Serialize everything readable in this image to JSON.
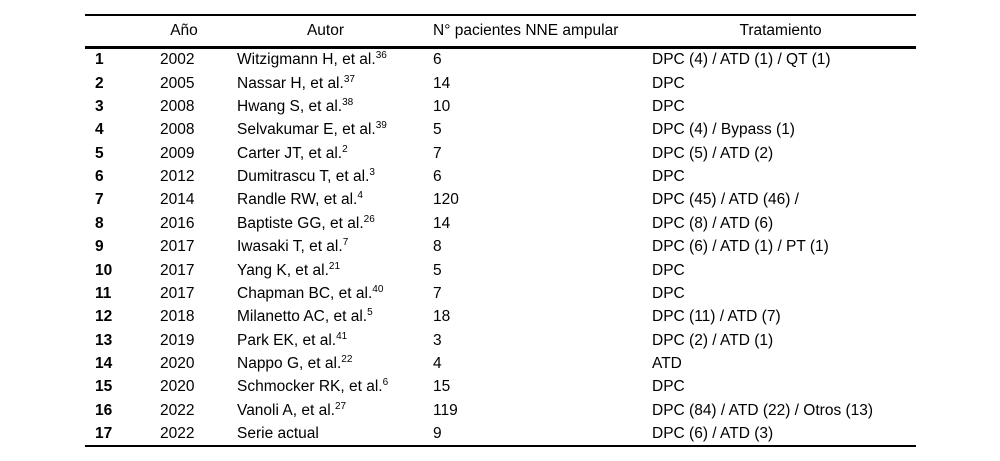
{
  "page": {
    "background_color": "#ffffff",
    "text_color": "#000000"
  },
  "table": {
    "columns": [
      {
        "key": "num",
        "label": ""
      },
      {
        "key": "ano",
        "label": "Año"
      },
      {
        "key": "autor",
        "label": "Autor"
      },
      {
        "key": "pacientes",
        "label": "N° pacientes NNE ampular"
      },
      {
        "key": "tratamiento",
        "label": "Tratamiento"
      }
    ],
    "rows": [
      {
        "num": "1",
        "ano": "2002",
        "autor": "Witzigmann H, et al.",
        "ref": "36",
        "pacientes": "6",
        "tratamiento": "DPC (4) / ATD (1) / QT (1)"
      },
      {
        "num": "2",
        "ano": "2005",
        "autor": "Nassar H, et al.",
        "ref": "37",
        "pacientes": "14",
        "tratamiento": "DPC"
      },
      {
        "num": "3",
        "ano": "2008",
        "autor": "Hwang S, et al.",
        "ref": "38",
        "pacientes": "10",
        "tratamiento": "DPC"
      },
      {
        "num": "4",
        "ano": "2008",
        "autor": "Selvakumar E, et al.",
        "ref": "39",
        "pacientes": "5",
        "tratamiento": "DPC (4) / Bypass (1)"
      },
      {
        "num": "5",
        "ano": "2009",
        "autor": "Carter JT, et al.",
        "ref": "2",
        "pacientes": "7",
        "tratamiento": "DPC (5) / ATD (2)"
      },
      {
        "num": "6",
        "ano": "2012",
        "autor": "Dumitrascu T, et al.",
        "ref": "3",
        "pacientes": "6",
        "tratamiento": "DPC"
      },
      {
        "num": "7",
        "ano": "2014",
        "autor": "Randle RW, et al.",
        "ref": "4",
        "pacientes": "120",
        "tratamiento": "DPC (45) / ATD (46) /"
      },
      {
        "num": "8",
        "ano": "2016",
        "autor": "Baptiste GG, et al.",
        "ref": "26",
        "pacientes": "14",
        "tratamiento": "DPC (8) / ATD (6)"
      },
      {
        "num": "9",
        "ano": "2017",
        "autor": "Iwasaki T, et al.",
        "ref": "7",
        "pacientes": "8",
        "tratamiento": "DPC (6) / ATD (1) / PT (1)"
      },
      {
        "num": "10",
        "ano": "2017",
        "autor": "Yang K, et al.",
        "ref": "21",
        "pacientes": "5",
        "tratamiento": "DPC"
      },
      {
        "num": "11",
        "ano": "2017",
        "autor": "Chapman BC, et al.",
        "ref": "40",
        "pacientes": "7",
        "tratamiento": "DPC"
      },
      {
        "num": "12",
        "ano": "2018",
        "autor": "Milanetto AC, et al.",
        "ref": "5",
        "pacientes": "18",
        "tratamiento": "DPC (11) / ATD (7)"
      },
      {
        "num": "13",
        "ano": "2019",
        "autor": "Park EK, et al.",
        "ref": "41",
        "pacientes": "3",
        "tratamiento": "DPC (2) / ATD (1)"
      },
      {
        "num": "14",
        "ano": "2020",
        "autor": "Nappo G, et al.",
        "ref": "22",
        "pacientes": "4",
        "tratamiento": "ATD"
      },
      {
        "num": "15",
        "ano": "2020",
        "autor": "Schmocker RK, et al.",
        "ref": "6",
        "pacientes": "15",
        "tratamiento": "DPC"
      },
      {
        "num": "16",
        "ano": "2022",
        "autor": "Vanoli A, et al.",
        "ref": "27",
        "pacientes": "119",
        "tratamiento": "DPC (84) / ATD (22) / Otros (13)"
      },
      {
        "num": "17",
        "ano": "2022",
        "autor": "Serie actual",
        "ref": "",
        "pacientes": "9",
        "tratamiento": "DPC (6) / ATD (3)"
      }
    ]
  }
}
